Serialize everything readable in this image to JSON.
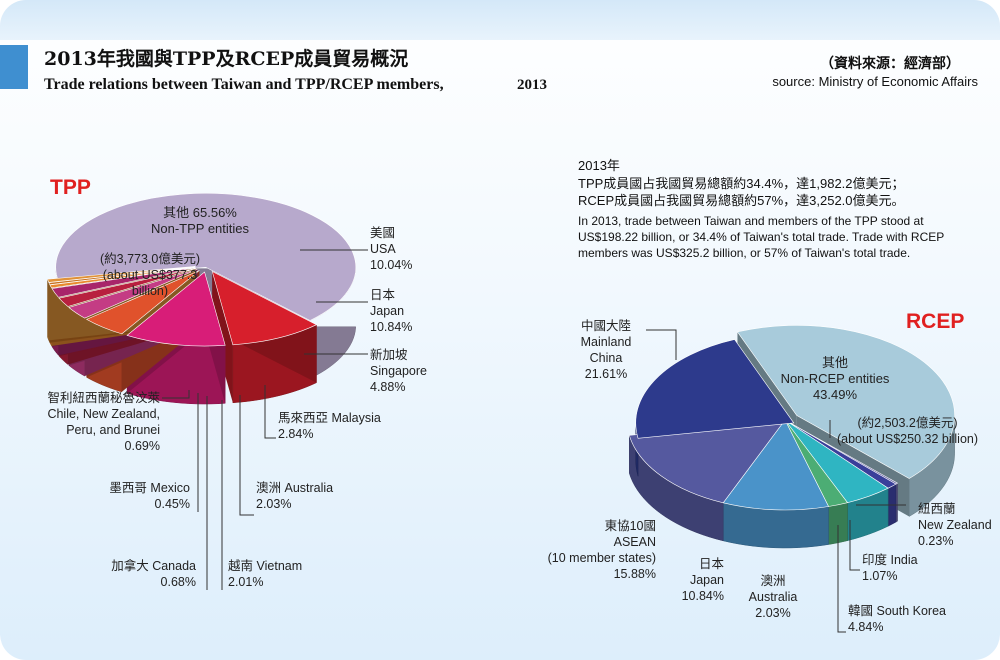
{
  "header": {
    "title_zh": "2013年我國與TPP及RCEP成員貿易概況",
    "title_en": "Trade relations between Taiwan and TPP/RCEP members,",
    "title_year": "2013",
    "source_zh": "（資料來源：經濟部）",
    "source_en": "source: Ministry of Economic Affairs"
  },
  "note": {
    "year": "2013年",
    "tpp_zh": "TPP成員國占我國貿易總額約34.4%，達1,982.2億美元；",
    "rcep_zh": "RCEP成員國占我國貿易總額約57%，達3,252.0億美元。",
    "en1": "In 2013, trade between Taiwan and members of the TPP stood at",
    "en2": "US$198.22 billion, or 34.4% of Taiwan's total trade. Trade with RCEP",
    "en3": "members was US$325.2 billion, or 57% of Taiwan's total trade."
  },
  "colors": {
    "tpp_other": "#b7a9cc",
    "usa": "#d71f2c",
    "japan": "#d81d78",
    "singapore": "#e0522c",
    "malaysia": "#c43c84",
    "australia": "#b8203f",
    "vietnam": "#a8256a",
    "canada": "#e8892e",
    "mexico": "#c7701f",
    "chile_group": "#e09238",
    "rcep_other": "#a8cbdb",
    "china": "#2d3a8c",
    "asean": "#55599f",
    "rcep_japan": "#4a93c9",
    "rcep_australia": "#4cad74",
    "korea": "#2fb5c2",
    "india": "#3a3f9a",
    "new_zealand": "#6e6aa8"
  },
  "chart_data": [
    {
      "type": "pie",
      "title": "TPP",
      "slices": [
        {
          "name_zh": "其他",
          "name_en": "Non-TPP entities",
          "value": 65.56,
          "pct": "65.56%",
          "note_zh": "(約3,773.0億美元)",
          "note_en1": "(about US$377.3",
          "note_en2": "billion)"
        },
        {
          "name_zh": "美國",
          "name_en": "USA",
          "value": 10.04,
          "pct": "10.04%"
        },
        {
          "name_zh": "日本",
          "name_en": "Japan",
          "value": 10.84,
          "pct": "10.84%"
        },
        {
          "name_zh": "新加坡",
          "name_en": "Singapore",
          "value": 4.88,
          "pct": "4.88%"
        },
        {
          "name_zh": "馬來西亞",
          "name_en": "Malaysia",
          "value": 2.84,
          "pct": "2.84%"
        },
        {
          "name_zh": "澳洲",
          "name_en": "Australia",
          "value": 2.03,
          "pct": "2.03%"
        },
        {
          "name_zh": "越南",
          "name_en": "Vietnam",
          "value": 2.01,
          "pct": "2.01%"
        },
        {
          "name_zh": "加拿大",
          "name_en": "Canada",
          "value": 0.68,
          "pct": "0.68%"
        },
        {
          "name_zh": "墨西哥",
          "name_en": "Mexico",
          "value": 0.45,
          "pct": "0.45%"
        },
        {
          "name_zh": "智利紐西蘭秘魯汶萊",
          "name_en": "Chile, New Zealand,",
          "name_en2": "Peru, and Brunei",
          "value": 0.69,
          "pct": "0.69%"
        }
      ]
    },
    {
      "type": "pie",
      "title": "RCEP",
      "slices": [
        {
          "name_zh": "其他",
          "name_en": "Non-RCEP entities",
          "value": 43.49,
          "pct": "43.49%",
          "note_zh": "(約2,503.2億美元)",
          "note_en": "(about US$250.32 billion)"
        },
        {
          "name_zh": "紐西蘭",
          "name_en": "New Zealand",
          "value": 0.23,
          "pct": "0.23%"
        },
        {
          "name_zh": "印度",
          "name_en": "India",
          "value": 1.07,
          "pct": "1.07%"
        },
        {
          "name_zh": "韓國",
          "name_en": "South Korea",
          "value": 4.84,
          "pct": "4.84%"
        },
        {
          "name_zh": "澳洲",
          "name_en": "Australia",
          "value": 2.03,
          "pct": "2.03%"
        },
        {
          "name_zh": "日本",
          "name_en": "Japan",
          "value": 10.84,
          "pct": "10.84%"
        },
        {
          "name_zh": "東協10國",
          "name_en": "ASEAN",
          "name_en2": "(10 member states)",
          "value": 15.88,
          "pct": "15.88%"
        },
        {
          "name_zh": "中國大陸",
          "name_en": "Mainland",
          "name_en2": "China",
          "value": 21.61,
          "pct": "21.61%"
        }
      ]
    }
  ]
}
